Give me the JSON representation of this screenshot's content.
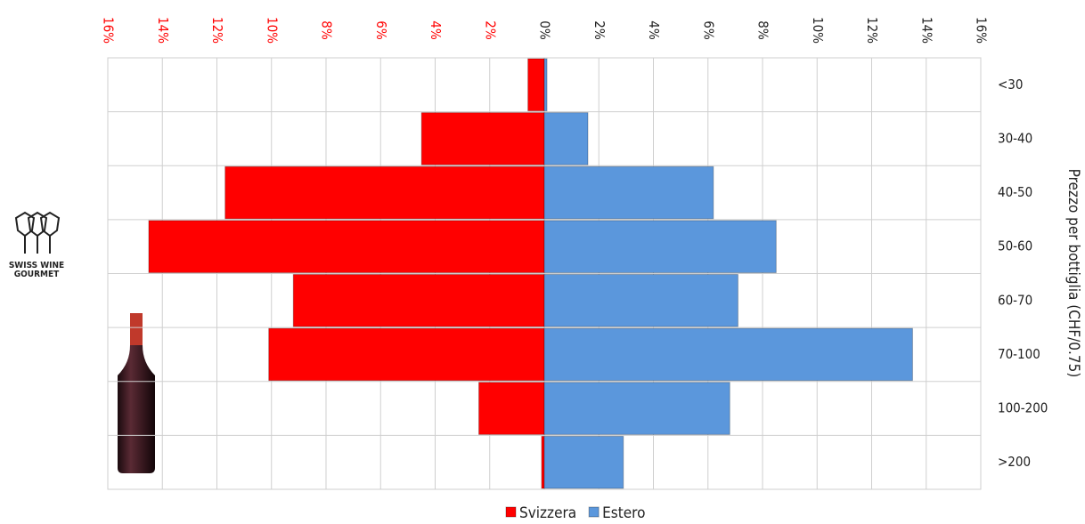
{
  "chart_data": {
    "type": "pyramid",
    "y_axis_label": "Prezzo per bottiglia (CHF/0.75)",
    "categories": [
      "<30",
      "30-40",
      "40-50",
      "50-60",
      "60-70",
      "70-100",
      "100-200",
      ">200"
    ],
    "series": [
      {
        "name": "Svizzera",
        "color": "#ff0000",
        "values": [
          -0.6,
          -4.5,
          -11.7,
          -14.5,
          -9.2,
          -10.1,
          -2.4,
          -0.1
        ]
      },
      {
        "name": "Estero",
        "color": "#5b97dc",
        "values": [
          0.1,
          1.6,
          6.2,
          8.5,
          7.1,
          13.5,
          6.8,
          2.9
        ]
      }
    ],
    "xlim": [
      -16,
      16
    ],
    "xticks": [
      {
        "value": -16,
        "label": "16%"
      },
      {
        "value": -14,
        "label": "14%"
      },
      {
        "value": -12,
        "label": "12%"
      },
      {
        "value": -10,
        "label": "10%"
      },
      {
        "value": -8,
        "label": "8%"
      },
      {
        "value": -6,
        "label": "6%"
      },
      {
        "value": -4,
        "label": "4%"
      },
      {
        "value": -2,
        "label": "2%"
      },
      {
        "value": 0,
        "label": "0%"
      },
      {
        "value": 2,
        "label": "2%"
      },
      {
        "value": 4,
        "label": "4%"
      },
      {
        "value": 6,
        "label": "6%"
      },
      {
        "value": 8,
        "label": "8%"
      },
      {
        "value": 10,
        "label": "10%"
      },
      {
        "value": 12,
        "label": "12%"
      },
      {
        "value": 14,
        "label": "14%"
      },
      {
        "value": 16,
        "label": "16%"
      }
    ],
    "negative_tick_color": "#ff0000",
    "grid": true,
    "legend": "bottom"
  },
  "logo": {
    "line1": "SWISS WINE",
    "line2": "GOURMET"
  }
}
